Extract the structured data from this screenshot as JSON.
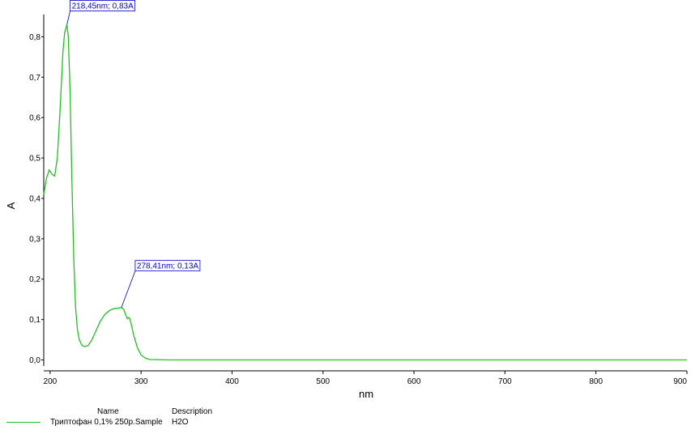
{
  "chart_data": {
    "type": "line",
    "xlabel": "nm",
    "ylabel": "A",
    "xlim": [
      193,
      900
    ],
    "ylim": [
      -0.015,
      0.855
    ],
    "x_ticks": [
      200,
      300,
      400,
      500,
      600,
      700,
      800,
      900
    ],
    "x_tick_labels": [
      "200",
      "300",
      "400",
      "500",
      "600",
      "700",
      "800",
      "900"
    ],
    "y_ticks": [
      0.0,
      0.1,
      0.2,
      0.3,
      0.4,
      0.5,
      0.6,
      0.7,
      0.8
    ],
    "y_tick_labels": [
      "0,0",
      "0,1",
      "0,2",
      "0,3",
      "0,4",
      "0,5",
      "0,6",
      "0,7",
      "0,8"
    ],
    "series": [
      {
        "color": "#20c020",
        "x": [
          193,
          196,
          199,
          202,
          205,
          208,
          211,
          214,
          216,
          218.45,
          220,
          222,
          224,
          226,
          228,
          230,
          232,
          235,
          238,
          242,
          246,
          250,
          255,
          260,
          265,
          270,
          275,
          278.41,
          281,
          283,
          285,
          287,
          289,
          292,
          296,
          300,
          305,
          310,
          330,
          400,
          500,
          600,
          700,
          800,
          900
        ],
        "y": [
          0.41,
          0.45,
          0.47,
          0.46,
          0.455,
          0.5,
          0.62,
          0.76,
          0.81,
          0.83,
          0.8,
          0.66,
          0.44,
          0.25,
          0.13,
          0.075,
          0.05,
          0.036,
          0.033,
          0.036,
          0.05,
          0.07,
          0.095,
          0.112,
          0.122,
          0.127,
          0.128,
          0.13,
          0.125,
          0.112,
          0.102,
          0.105,
          0.09,
          0.06,
          0.03,
          0.012,
          0.004,
          0.001,
          0.0,
          0.0,
          0.0,
          0.0,
          0.0,
          0.0,
          0.0
        ]
      }
    ],
    "annotations": [
      {
        "text": "218,45nm; 0,83A",
        "x": 218.45,
        "y": 0.83
      },
      {
        "text": "278,41nm; 0,13A",
        "x": 278.41,
        "y": 0.13
      }
    ]
  },
  "legend": {
    "name_header": "Name",
    "description_header": "Description",
    "entries": [
      {
        "name": "Триптофан 0,1%  250р.Sample",
        "description": "H2O"
      }
    ]
  }
}
